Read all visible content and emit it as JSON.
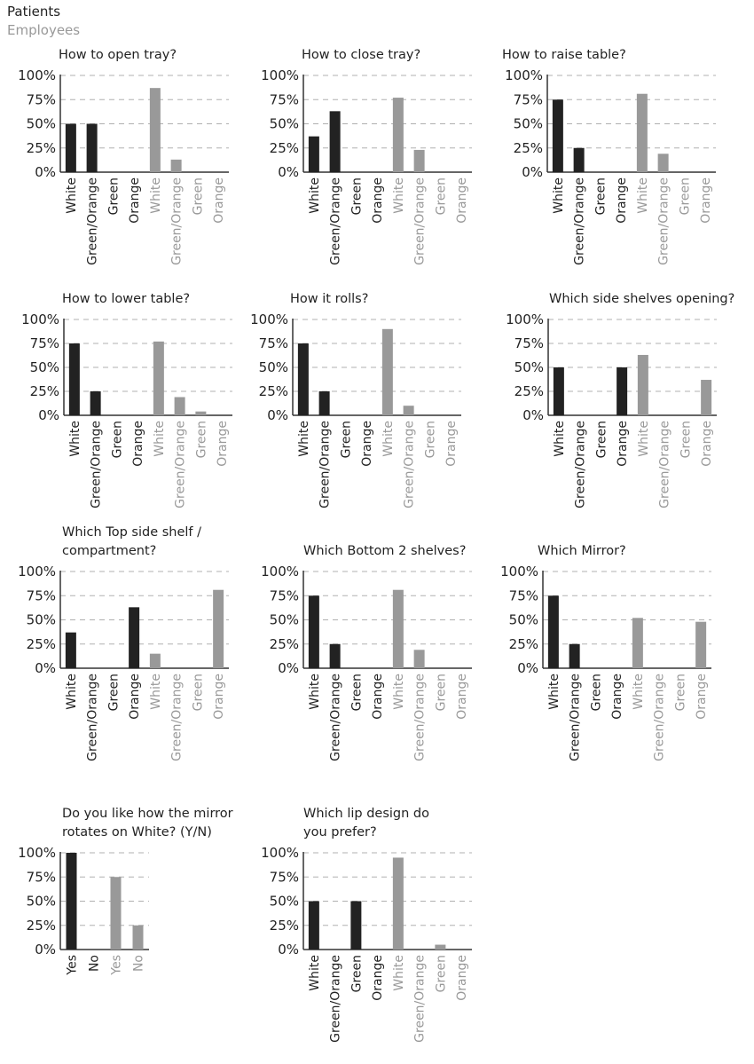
{
  "legend": {
    "patients": "Patients",
    "employees": "Employees"
  },
  "colors": {
    "patients": "#222222",
    "employees": "#999999",
    "grid": "#b0b0b0"
  },
  "chart_data": [
    {
      "type": "bar",
      "title": "How to open tray?",
      "categories": [
        "White",
        "Green/Orange",
        "Green",
        "Orange"
      ],
      "series": [
        {
          "name": "Patients",
          "values": [
            50,
            50,
            0,
            0
          ]
        },
        {
          "name": "Employees",
          "values": [
            87,
            13,
            0,
            0
          ]
        }
      ],
      "yticks": [
        "0%",
        "25%",
        "50%",
        "75%",
        "100%"
      ],
      "ylim": [
        0,
        100
      ]
    },
    {
      "type": "bar",
      "title": "How to close tray?",
      "categories": [
        "White",
        "Green/Orange",
        "Green",
        "Orange"
      ],
      "series": [
        {
          "name": "Patients",
          "values": [
            37,
            63,
            0,
            0
          ]
        },
        {
          "name": "Employees",
          "values": [
            77,
            23,
            0,
            0
          ]
        }
      ],
      "yticks": [
        "0%",
        "25%",
        "50%",
        "75%",
        "100%"
      ],
      "ylim": [
        0,
        100
      ]
    },
    {
      "type": "bar",
      "title": "How to raise table?",
      "categories": [
        "White",
        "Green/Orange",
        "Green",
        "Orange"
      ],
      "series": [
        {
          "name": "Patients",
          "values": [
            75,
            25,
            0,
            0
          ]
        },
        {
          "name": "Employees",
          "values": [
            81,
            19,
            0,
            0
          ]
        }
      ],
      "yticks": [
        "0%",
        "25%",
        "50%",
        "75%",
        "100%"
      ],
      "ylim": [
        0,
        100
      ]
    },
    {
      "type": "bar",
      "title": "How to lower table?",
      "categories": [
        "White",
        "Green/Orange",
        "Green",
        "Orange"
      ],
      "series": [
        {
          "name": "Patients",
          "values": [
            75,
            25,
            0,
            0
          ]
        },
        {
          "name": "Employees",
          "values": [
            77,
            19,
            4,
            0
          ]
        }
      ],
      "yticks": [
        "0%",
        "25%",
        "50%",
        "75%",
        "100%"
      ],
      "ylim": [
        0,
        100
      ]
    },
    {
      "type": "bar",
      "title": "How it rolls?",
      "categories": [
        "White",
        "Green/Orange",
        "Green",
        "Orange"
      ],
      "series": [
        {
          "name": "Patients",
          "values": [
            75,
            25,
            0,
            0
          ]
        },
        {
          "name": "Employees",
          "values": [
            90,
            10,
            0,
            0
          ]
        }
      ],
      "yticks": [
        "0%",
        "25%",
        "50%",
        "75%",
        "100%"
      ],
      "ylim": [
        0,
        100
      ]
    },
    {
      "type": "bar",
      "title": "Which side shelves opening?",
      "categories": [
        "White",
        "Green/Orange",
        "Green",
        "Orange"
      ],
      "series": [
        {
          "name": "Patients",
          "values": [
            50,
            0,
            0,
            50
          ]
        },
        {
          "name": "Employees",
          "values": [
            63,
            0,
            0,
            37
          ]
        }
      ],
      "yticks": [
        "0%",
        "25%",
        "50%",
        "75%",
        "100%"
      ],
      "ylim": [
        0,
        100
      ]
    },
    {
      "type": "bar",
      "title": "Which Top side shelf /\ncompartment?",
      "categories": [
        "White",
        "Green/Orange",
        "Green",
        "Orange"
      ],
      "series": [
        {
          "name": "Patients",
          "values": [
            37,
            0,
            0,
            63
          ]
        },
        {
          "name": "Employees",
          "values": [
            15,
            0,
            0,
            81
          ]
        }
      ],
      "yticks": [
        "0%",
        "25%",
        "50%",
        "75%",
        "100%"
      ],
      "ylim": [
        0,
        100
      ]
    },
    {
      "type": "bar",
      "title": "Which Bottom 2 shelves?",
      "categories": [
        "White",
        "Green/Orange",
        "Green",
        "Orange"
      ],
      "series": [
        {
          "name": "Patients",
          "values": [
            75,
            25,
            0,
            0
          ]
        },
        {
          "name": "Employees",
          "values": [
            81,
            19,
            0,
            0
          ]
        }
      ],
      "yticks": [
        "0%",
        "25%",
        "50%",
        "75%",
        "100%"
      ],
      "ylim": [
        0,
        100
      ]
    },
    {
      "type": "bar",
      "title": "Which Mirror?",
      "categories": [
        "White",
        "Green/Orange",
        "Green",
        "Orange"
      ],
      "series": [
        {
          "name": "Patients",
          "values": [
            75,
            25,
            0,
            0
          ]
        },
        {
          "name": "Employees",
          "values": [
            52,
            0,
            0,
            48
          ]
        }
      ],
      "yticks": [
        "0%",
        "25%",
        "50%",
        "75%",
        "100%"
      ],
      "ylim": [
        0,
        100
      ]
    },
    {
      "type": "bar",
      "title": "Do you like how the mirror\nrotates on White? (Y/N)",
      "categories": [
        "Yes",
        "No"
      ],
      "series": [
        {
          "name": "Patients",
          "values": [
            100,
            0
          ]
        },
        {
          "name": "Employees",
          "values": [
            75,
            25
          ]
        }
      ],
      "yticks": [
        "0%",
        "25%",
        "50%",
        "75%",
        "100%"
      ],
      "ylim": [
        0,
        100
      ]
    },
    {
      "type": "bar",
      "title": "Which lip design do\nyou prefer?",
      "categories": [
        "White",
        "Green/Orange",
        "Green",
        "Orange"
      ],
      "series": [
        {
          "name": "Patients",
          "values": [
            50,
            0,
            50,
            0
          ]
        },
        {
          "name": "Employees",
          "values": [
            95,
            0,
            5,
            0
          ]
        }
      ],
      "yticks": [
        "0%",
        "25%",
        "50%",
        "75%",
        "100%"
      ],
      "ylim": [
        0,
        100
      ]
    }
  ]
}
